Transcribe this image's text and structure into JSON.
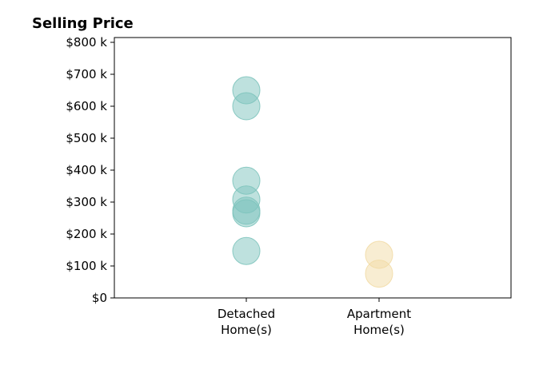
{
  "chart_data": {
    "type": "scatter",
    "title": "Selling Price",
    "xlabel": "",
    "ylabel": "",
    "categories": [
      "Detached Home(s)",
      "Apartment Home(s)"
    ],
    "category_labels": [
      [
        "Detached",
        "Home(s)"
      ],
      [
        "Apartment",
        "Home(s)"
      ]
    ],
    "ylim": [
      0,
      815000
    ],
    "yticks": [
      0,
      100000,
      200000,
      300000,
      400000,
      500000,
      600000,
      700000,
      800000
    ],
    "ytick_labels": [
      "$0",
      "$100 k",
      "$200 k",
      "$300 k",
      "$400 k",
      "$500 k",
      "$600 k",
      "$700 k",
      "$800 k"
    ],
    "grid": false,
    "legend": "none",
    "series": [
      {
        "category": "Detached Home(s)",
        "color": "#7ec4bd",
        "values": [
          650000,
          600000,
          367000,
          308000,
          273000,
          265000,
          147000
        ]
      },
      {
        "category": "Apartment Home(s)",
        "color": "#f2dba6",
        "values": [
          135000,
          76000
        ]
      }
    ]
  }
}
